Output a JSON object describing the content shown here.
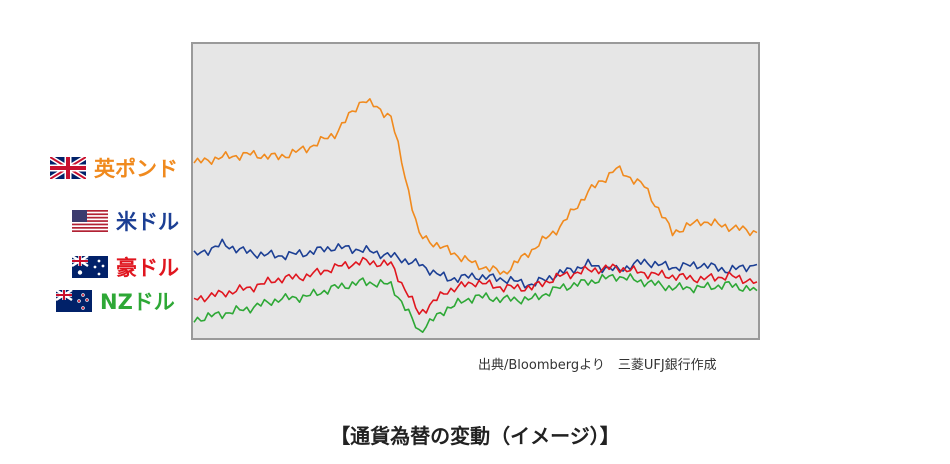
{
  "caption": "【通貨為替の変動（イメージ）】",
  "source_note": "出典/Bloombergより　三菱UFJ銀行作成",
  "legend": [
    {
      "label": "英ポンド",
      "color": "#f08a1e",
      "flag": "gb-flag-icon"
    },
    {
      "label": "米ドル",
      "color": "#1c3f94",
      "flag": "us-flag-icon"
    },
    {
      "label": "豪ドル",
      "color": "#e0161f",
      "flag": "au-flag-icon"
    },
    {
      "label": "NZドル",
      "color": "#2ea836",
      "flag": "nz-flag-icon"
    }
  ],
  "chart_data": {
    "type": "line",
    "x": [
      0,
      5,
      10,
      15,
      20,
      25,
      30,
      35,
      40,
      45,
      50,
      55,
      60,
      65,
      70,
      75,
      80,
      85,
      90,
      95,
      100
    ],
    "yunits": "relative (no axis printed)",
    "grid": false,
    "series": [
      {
        "name": "英ポンド",
        "color": "#f08a1e",
        "values": [
          60,
          62,
          63,
          62,
          65,
          70,
          82,
          76,
          35,
          30,
          25,
          22,
          30,
          38,
          50,
          58,
          52,
          36,
          40,
          38,
          36
        ]
      },
      {
        "name": "米ドル",
        "color": "#1c3f94",
        "values": [
          28,
          32,
          29,
          28,
          29,
          31,
          30,
          28,
          25,
          20,
          21,
          20,
          18,
          22,
          25,
          23,
          26,
          24,
          25,
          23,
          25
        ]
      },
      {
        "name": "豪ドル",
        "color": "#e0161f",
        "values": [
          13,
          15,
          17,
          20,
          21,
          24,
          26,
          25,
          8,
          16,
          19,
          17,
          17,
          21,
          23,
          24,
          22,
          21,
          20,
          21,
          19
        ]
      },
      {
        "name": "NZドル",
        "color": "#2ea836",
        "values": [
          6,
          8,
          10,
          13,
          14,
          17,
          19,
          18,
          2,
          10,
          14,
          13,
          13,
          17,
          19,
          21,
          19,
          17,
          17,
          18,
          16
        ]
      }
    ]
  }
}
